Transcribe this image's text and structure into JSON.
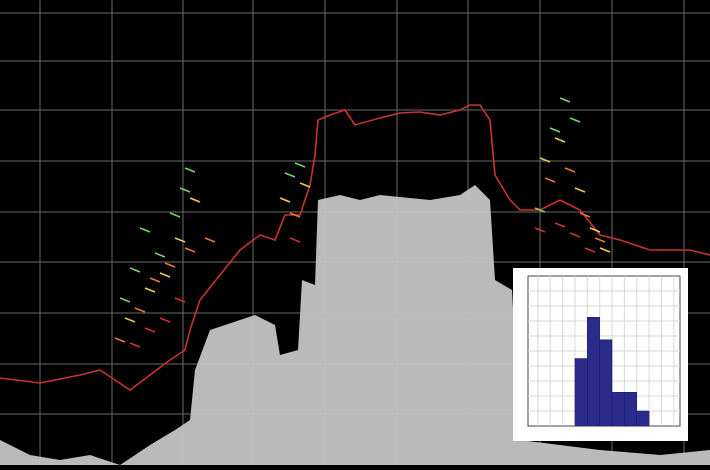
{
  "chart_data": [
    {
      "type": "area",
      "color": "#c4c4c4",
      "grid": true,
      "xlim": [
        0,
        710
      ],
      "ylim": [
        0,
        465
      ],
      "xticks": [
        40,
        112,
        183,
        253,
        325,
        397,
        468,
        540,
        612,
        684
      ],
      "yticks": [
        51,
        101,
        152,
        203,
        253,
        304,
        355,
        404,
        452
      ],
      "x": [
        0,
        30,
        60,
        90,
        120,
        150,
        175,
        190,
        195,
        210,
        240,
        255,
        275,
        280,
        298,
        302,
        315,
        318,
        340,
        360,
        380,
        400,
        430,
        460,
        475,
        490,
        495,
        512,
        520,
        600,
        660,
        710
      ],
      "values": [
        25,
        10,
        5,
        10,
        0,
        20,
        35,
        45,
        95,
        135,
        145,
        150,
        140,
        110,
        115,
        185,
        180,
        265,
        270,
        265,
        270,
        268,
        265,
        270,
        280,
        265,
        185,
        175,
        25,
        15,
        10,
        15
      ]
    },
    {
      "type": "line",
      "color": "#c83232",
      "xlim": [
        0,
        710
      ],
      "ylim": [
        0,
        465
      ],
      "x": [
        0,
        40,
        80,
        100,
        115,
        130,
        150,
        170,
        185,
        190,
        200,
        220,
        240,
        260,
        275,
        285,
        300,
        310,
        315,
        318,
        330,
        345,
        355,
        380,
        400,
        420,
        440,
        460,
        470,
        480,
        490,
        495,
        510,
        520,
        540,
        560,
        580,
        600,
        620,
        650,
        690,
        710
      ],
      "values": [
        87,
        82,
        90,
        95,
        85,
        75,
        90,
        105,
        115,
        135,
        165,
        190,
        215,
        230,
        225,
        250,
        250,
        280,
        310,
        345,
        350,
        355,
        340,
        347,
        352,
        353,
        350,
        355,
        360,
        360,
        345,
        290,
        265,
        255,
        255,
        265,
        255,
        230,
        225,
        215,
        215,
        210
      ]
    },
    {
      "type": "scatter",
      "xlim": [
        0,
        710
      ],
      "ylim": [
        0,
        465
      ],
      "series": [
        {
          "color": "#7fd070",
          "x": [
            125,
            135,
            145,
            160,
            175,
            185,
            190,
            290,
            300,
            555,
            565,
            540,
            575
          ],
          "values": [
            165,
            195,
            235,
            210,
            250,
            275,
            295,
            290,
            300,
            335,
            365,
            255,
            345
          ]
        },
        {
          "color": "#e8d040",
          "x": [
            130,
            150,
            165,
            180,
            195,
            285,
            305,
            545,
            560,
            580,
            595,
            605
          ],
          "values": [
            145,
            175,
            190,
            225,
            265,
            265,
            280,
            305,
            325,
            275,
            235,
            215
          ]
        },
        {
          "color": "#e87830",
          "x": [
            120,
            140,
            155,
            170,
            190,
            210,
            295,
            550,
            570,
            585,
            600
          ],
          "values": [
            125,
            155,
            185,
            200,
            215,
            225,
            250,
            285,
            295,
            250,
            225
          ]
        },
        {
          "color": "#d03030",
          "x": [
            135,
            150,
            165,
            180,
            295,
            540,
            560,
            575,
            590
          ],
          "values": [
            120,
            135,
            145,
            165,
            225,
            235,
            240,
            230,
            215
          ]
        }
      ]
    },
    {
      "type": "histogram",
      "color": "#2b2b8c",
      "grid": true,
      "xlim": [
        0.2,
        12.5
      ],
      "ylim": [
        0,
        20
      ],
      "xticks": [
        1,
        2,
        3,
        4,
        5,
        6,
        7,
        8,
        9,
        10,
        11,
        12
      ],
      "yticks": [
        2,
        4,
        6,
        8,
        10,
        12,
        14,
        16,
        18
      ],
      "bins": [
        4,
        5,
        6,
        7,
        8,
        9,
        10
      ],
      "values": [
        9,
        14.5,
        11.5,
        4.5,
        4.5,
        2
      ]
    }
  ]
}
